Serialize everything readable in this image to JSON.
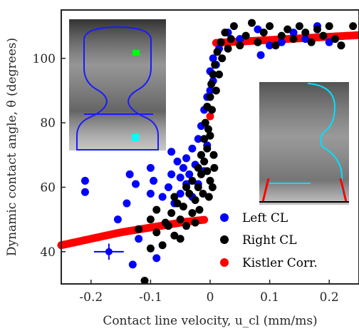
{
  "chart_data": {
    "type": "scatter",
    "xlabel": "Contact line velocity, u_cl (mm/ms)",
    "ylabel": "Dynamic contact angle, θ (degrees)",
    "xlim": [
      -0.25,
      0.25
    ],
    "ylim": [
      30,
      115
    ],
    "x_ticks": [
      "-0.2",
      "-0.1",
      "0",
      "0.1",
      "0.2"
    ],
    "y_ticks": [
      "40",
      "60",
      "80",
      "100"
    ],
    "grid": false,
    "legend_position": "bottom-right",
    "colors": {
      "left": "#0000ff",
      "right": "#000000",
      "kistler": "#ff0000"
    },
    "series": [
      {
        "name": "Left CL",
        "color": "#0000ff",
        "points": [
          [
            -0.21,
            62
          ],
          [
            -0.21,
            58.5
          ],
          [
            -0.135,
            64
          ],
          [
            -0.125,
            61
          ],
          [
            -0.14,
            55
          ],
          [
            -0.155,
            50
          ],
          [
            -0.1,
            58
          ],
          [
            -0.1,
            66
          ],
          [
            -0.095,
            62
          ],
          [
            -0.07,
            60
          ],
          [
            -0.065,
            64
          ],
          [
            -0.06,
            55
          ],
          [
            -0.05,
            63
          ],
          [
            -0.05,
            58
          ],
          [
            -0.045,
            66
          ],
          [
            -0.04,
            61
          ],
          [
            -0.04,
            69
          ],
          [
            -0.035,
            64
          ],
          [
            -0.03,
            57
          ],
          [
            -0.03,
            72
          ],
          [
            -0.025,
            67
          ],
          [
            -0.02,
            75
          ],
          [
            -0.02,
            61
          ],
          [
            -0.015,
            70
          ],
          [
            -0.015,
            79
          ],
          [
            -0.01,
            65
          ],
          [
            -0.01,
            84
          ],
          [
            -0.005,
            73
          ],
          [
            -0.005,
            88
          ],
          [
            0.0,
            90
          ],
          [
            0.0,
            96
          ],
          [
            0.005,
            100
          ],
          [
            0.005,
            93
          ],
          [
            0.01,
            98
          ],
          [
            0.015,
            103
          ],
          [
            0.03,
            108
          ],
          [
            0.05,
            106
          ],
          [
            0.08,
            109
          ],
          [
            0.1,
            104
          ],
          [
            0.12,
            105
          ],
          [
            0.14,
            108
          ],
          [
            0.16,
            106
          ],
          [
            0.18,
            110
          ],
          [
            0.2,
            105
          ],
          [
            0.22,
            104
          ],
          [
            0.085,
            101
          ],
          [
            -0.12,
            44
          ],
          [
            -0.09,
            38
          ],
          [
            -0.13,
            36
          ],
          [
            -0.055,
            68
          ],
          [
            -0.065,
            71
          ],
          [
            -0.08,
            57
          ]
        ]
      },
      {
        "name": "Right CL",
        "color": "#000000",
        "points": [
          [
            -0.11,
            31
          ],
          [
            -0.1,
            41
          ],
          [
            -0.12,
            47
          ],
          [
            -0.1,
            50
          ],
          [
            -0.09,
            46
          ],
          [
            -0.08,
            42
          ],
          [
            -0.07,
            48
          ],
          [
            -0.065,
            52
          ],
          [
            -0.06,
            45
          ],
          [
            -0.055,
            55
          ],
          [
            -0.05,
            50
          ],
          [
            -0.045,
            54
          ],
          [
            -0.04,
            48
          ],
          [
            -0.035,
            58
          ],
          [
            -0.03,
            52
          ],
          [
            -0.03,
            62
          ],
          [
            -0.025,
            56
          ],
          [
            -0.02,
            60
          ],
          [
            -0.02,
            66
          ],
          [
            -0.015,
            64
          ],
          [
            -0.015,
            70
          ],
          [
            -0.01,
            68
          ],
          [
            -0.01,
            75
          ],
          [
            -0.008,
            80
          ],
          [
            -0.005,
            72
          ],
          [
            -0.005,
            85
          ],
          [
            -0.003,
            78
          ],
          [
            0.0,
            88
          ],
          [
            0.0,
            76
          ],
          [
            0.002,
            92
          ],
          [
            0.003,
            84
          ],
          [
            0.005,
            95
          ],
          [
            0.006,
            70
          ],
          [
            0.008,
            98
          ],
          [
            0.01,
            90
          ],
          [
            0.012,
            102
          ],
          [
            0.015,
            95
          ],
          [
            0.018,
            105
          ],
          [
            0.02,
            100
          ],
          [
            0.025,
            108
          ],
          [
            0.03,
            103
          ],
          [
            0.035,
            106
          ],
          [
            0.04,
            110
          ],
          [
            0.05,
            104
          ],
          [
            0.06,
            107
          ],
          [
            0.07,
            111
          ],
          [
            0.08,
            105
          ],
          [
            0.09,
            108
          ],
          [
            0.1,
            110
          ],
          [
            0.11,
            104
          ],
          [
            0.12,
            107
          ],
          [
            0.13,
            109
          ],
          [
            0.14,
            106
          ],
          [
            0.15,
            110
          ],
          [
            0.16,
            108
          ],
          [
            0.17,
            105
          ],
          [
            0.18,
            109
          ],
          [
            0.19,
            107
          ],
          [
            0.2,
            110
          ],
          [
            0.21,
            106
          ],
          [
            0.22,
            104
          ],
          [
            0.24,
            110
          ],
          [
            -0.005,
            65
          ],
          [
            -0.012,
            58
          ],
          [
            -0.018,
            53
          ],
          [
            -0.025,
            49
          ],
          [
            -0.04,
            60
          ],
          [
            -0.05,
            44
          ],
          [
            -0.06,
            57
          ],
          [
            -0.075,
            49
          ],
          [
            -0.09,
            53
          ],
          [
            0.004,
            60
          ],
          [
            0.007,
            66
          ],
          [
            0.0,
            62
          ],
          [
            -0.002,
            57
          ]
        ]
      },
      {
        "name": "Kistler Corr.",
        "color": "#ff0000",
        "x": [
          -0.25,
          -0.24,
          -0.23,
          -0.22,
          -0.21,
          -0.2,
          -0.19,
          -0.18,
          -0.17,
          -0.16,
          -0.15,
          -0.14,
          -0.13,
          -0.12,
          -0.11,
          -0.1,
          -0.09,
          -0.08,
          -0.07,
          -0.06,
          -0.05,
          -0.04,
          -0.03,
          -0.02,
          -0.01,
          0.0,
          0.01,
          0.02,
          0.03,
          0.04,
          0.05,
          0.06,
          0.07,
          0.08,
          0.09,
          0.1,
          0.11,
          0.12,
          0.13,
          0.14,
          0.15,
          0.16,
          0.17,
          0.18,
          0.19,
          0.2,
          0.21,
          0.22,
          0.23,
          0.24,
          0.25
        ],
        "y": [
          42.0,
          42.4,
          42.8,
          43.2,
          43.6,
          44.0,
          44.4,
          44.8,
          45.2,
          45.6,
          46.0,
          46.3,
          46.6,
          46.9,
          47.2,
          47.5,
          47.8,
          48.1,
          48.4,
          48.7,
          49.0,
          49.3,
          49.5,
          49.7,
          49.9,
          82.0,
          104.8,
          104.9,
          105.0,
          105.1,
          105.2,
          105.3,
          105.4,
          105.5,
          105.6,
          105.7,
          105.8,
          105.9,
          106.0,
          106.1,
          106.2,
          106.3,
          106.4,
          106.5,
          106.6,
          106.7,
          106.8,
          106.9,
          107.0,
          107.1,
          107.2
        ]
      }
    ],
    "error_bar": {
      "x": -0.17,
      "y": 40,
      "x_err": 0.025,
      "y_err": 2.5,
      "color": "#0000ff"
    }
  }
}
